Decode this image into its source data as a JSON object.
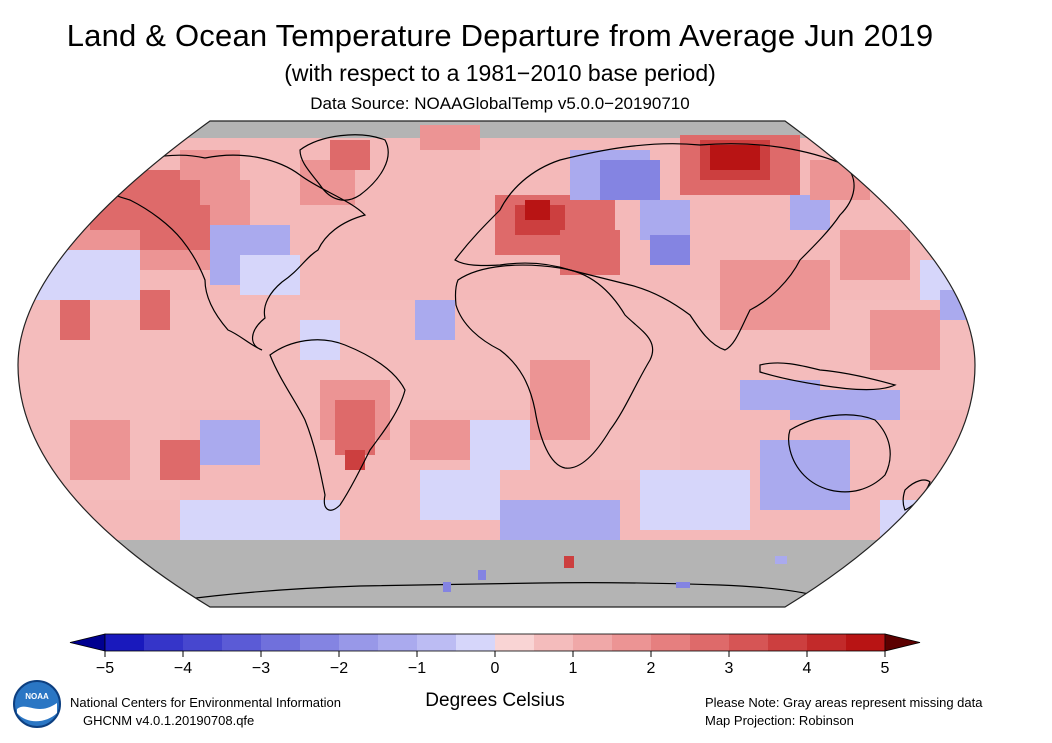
{
  "header": {
    "title": "Land & Ocean Temperature Departure from Average Jun 2019",
    "subtitle": "(with respect to a 1981−2010 base period)",
    "source": "Data Source: NOAAGlobalTemp v5.0.0−20190710"
  },
  "map": {
    "projection": "Robinson",
    "missing_color": "#b4b4b4",
    "regions": [
      {
        "name": "western-russia",
        "level": "very-warm"
      },
      {
        "name": "central-europe",
        "level": "very-warm"
      },
      {
        "name": "northeast-siberia",
        "level": "very-warm"
      },
      {
        "name": "alaska",
        "level": "warm"
      },
      {
        "name": "greenland",
        "level": "warm"
      },
      {
        "name": "southern-south-america",
        "level": "warm"
      },
      {
        "name": "north-central-russia",
        "level": "cool"
      },
      {
        "name": "central-north-america",
        "level": "cool"
      },
      {
        "name": "central-asia",
        "level": "cool"
      },
      {
        "name": "antarctica",
        "level": "missing"
      }
    ]
  },
  "colorbar": {
    "ticks": [
      "−5",
      "−4",
      "−3",
      "−2",
      "−1",
      "0",
      "1",
      "2",
      "3",
      "4",
      "5"
    ],
    "colors": [
      "#1919bd",
      "#3535c9",
      "#4747cf",
      "#5b5bd6",
      "#7070dc",
      "#8484e2",
      "#9898e8",
      "#aaaaee",
      "#bcbcf3",
      "#d6d6fa",
      "#f9d4d4",
      "#f4bcbc",
      "#f0a8a8",
      "#ec9494",
      "#e67f7f",
      "#de6a6a",
      "#d65555",
      "#cc3f3f",
      "#c22a2a",
      "#b81414"
    ],
    "under_color": "#000090",
    "over_color": "#5c0000"
  },
  "footer": {
    "org": "National Centers for Environmental Information",
    "dataset": "GHCNM v4.0.1.20190708.qfe",
    "units": "Degrees Celsius",
    "note": "Please Note: Gray areas represent missing data",
    "projection": "Map Projection: Robinson"
  },
  "logo": {
    "text": "NOAA"
  }
}
